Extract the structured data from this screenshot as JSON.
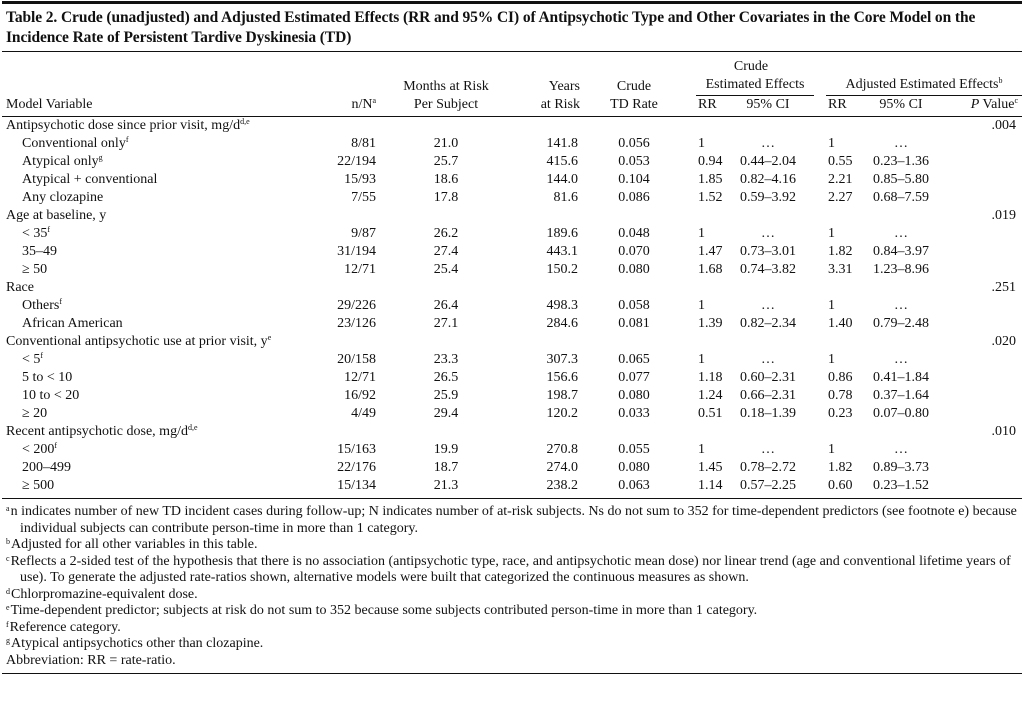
{
  "title": "Table 2. Crude (unadjusted) and Adjusted Estimated Effects (RR and 95% CI) of Antipsychotic Type and Other Covariates in the Core Model on the Incidence Rate of Persistent Tardive Dyskinesia (TD)",
  "header": {
    "model_variable": "Model Variable",
    "nN": "n/N",
    "nN_sup": "a",
    "months_1": "Months at Risk",
    "months_2": "Per Subject",
    "years_1": "Years",
    "years_2": "at Risk",
    "rate_1": "Crude",
    "rate_2": "TD Rate",
    "crude_1": "Crude",
    "crude_2": "Estimated Effects",
    "adjusted": "Adjusted Estimated Effects",
    "adjusted_sup": "b",
    "rr": "RR",
    "ci": "95% CI",
    "p_italic": "P",
    "p_rest": " Value",
    "p_sup": "c"
  },
  "groups": [
    {
      "label": "Antipsychotic dose since prior visit, mg/d",
      "sup": "d,e",
      "p": ".004",
      "rows": [
        {
          "label": "Conventional only",
          "sup": "f",
          "nN": "8/81",
          "months": "21.0",
          "years": "141.8",
          "rate": "0.056",
          "crr": "1",
          "cci": "…",
          "arr": "1",
          "aci": "…"
        },
        {
          "label": "Atypical only",
          "sup": "g",
          "nN": "22/194",
          "months": "25.7",
          "years": "415.6",
          "rate": "0.053",
          "crr": "0.94",
          "cci": "0.44–2.04",
          "arr": "0.55",
          "aci": "0.23–1.36"
        },
        {
          "label": "Atypical + conventional",
          "sup": "",
          "nN": "15/93",
          "months": "18.6",
          "years": "144.0",
          "rate": "0.104",
          "crr": "1.85",
          "cci": "0.82–4.16",
          "arr": "2.21",
          "aci": "0.85–5.80"
        },
        {
          "label": "Any clozapine",
          "sup": "",
          "nN": "7/55",
          "months": "17.8",
          "years": "81.6",
          "rate": "0.086",
          "crr": "1.52",
          "cci": "0.59–3.92",
          "arr": "2.27",
          "aci": "0.68–7.59"
        }
      ]
    },
    {
      "label": "Age at baseline, y",
      "sup": "",
      "p": ".019",
      "rows": [
        {
          "label": "< 35",
          "sup": "f",
          "nN": "9/87",
          "months": "26.2",
          "years": "189.6",
          "rate": "0.048",
          "crr": "1",
          "cci": "…",
          "arr": "1",
          "aci": "…"
        },
        {
          "label": "35–49",
          "sup": "",
          "nN": "31/194",
          "months": "27.4",
          "years": "443.1",
          "rate": "0.070",
          "crr": "1.47",
          "cci": "0.73–3.01",
          "arr": "1.82",
          "aci": "0.84–3.97"
        },
        {
          "label": "≥ 50",
          "sup": "",
          "nN": "12/71",
          "months": "25.4",
          "years": "150.2",
          "rate": "0.080",
          "crr": "1.68",
          "cci": "0.74–3.82",
          "arr": "3.31",
          "aci": "1.23–8.96"
        }
      ]
    },
    {
      "label": "Race",
      "sup": "",
      "p": ".251",
      "rows": [
        {
          "label": "Others",
          "sup": "f",
          "nN": "29/226",
          "months": "26.4",
          "years": "498.3",
          "rate": "0.058",
          "crr": "1",
          "cci": "…",
          "arr": "1",
          "aci": "…"
        },
        {
          "label": "African American",
          "sup": "",
          "nN": "23/126",
          "months": "27.1",
          "years": "284.6",
          "rate": "0.081",
          "crr": "1.39",
          "cci": "0.82–2.34",
          "arr": "1.40",
          "aci": "0.79–2.48"
        }
      ]
    },
    {
      "label": "Conventional antipsychotic use at prior visit, y",
      "sup": "e",
      "p": ".020",
      "rows": [
        {
          "label": "< 5",
          "sup": "f",
          "nN": "20/158",
          "months": "23.3",
          "years": "307.3",
          "rate": "0.065",
          "crr": "1",
          "cci": "…",
          "arr": "1",
          "aci": "…"
        },
        {
          "label": "5 to < 10",
          "sup": "",
          "nN": "12/71",
          "months": "26.5",
          "years": "156.6",
          "rate": "0.077",
          "crr": "1.18",
          "cci": "0.60–2.31",
          "arr": "0.86",
          "aci": "0.41–1.84"
        },
        {
          "label": "10 to < 20",
          "sup": "",
          "nN": "16/92",
          "months": "25.9",
          "years": "198.7",
          "rate": "0.080",
          "crr": "1.24",
          "cci": "0.66–2.31",
          "arr": "0.78",
          "aci": "0.37–1.64"
        },
        {
          "label": "≥ 20",
          "sup": "",
          "nN": "4/49",
          "months": "29.4",
          "years": "120.2",
          "rate": "0.033",
          "crr": "0.51",
          "cci": "0.18–1.39",
          "arr": "0.23",
          "aci": "0.07–0.80"
        }
      ]
    },
    {
      "label": "Recent antipsychotic dose, mg/d",
      "sup": "d,e",
      "p": ".010",
      "rows": [
        {
          "label": "< 200",
          "sup": "f",
          "nN": "15/163",
          "months": "19.9",
          "years": "270.8",
          "rate": "0.055",
          "crr": "1",
          "cci": "…",
          "arr": "1",
          "aci": "…"
        },
        {
          "label": "200–499",
          "sup": "",
          "nN": "22/176",
          "months": "18.7",
          "years": "274.0",
          "rate": "0.080",
          "crr": "1.45",
          "cci": "0.78–2.72",
          "arr": "1.82",
          "aci": "0.89–3.73"
        },
        {
          "label": "≥ 500",
          "sup": "",
          "nN": "15/134",
          "months": "21.3",
          "years": "238.2",
          "rate": "0.063",
          "crr": "1.14",
          "cci": "0.57–2.25",
          "arr": "0.60",
          "aci": "0.23–1.52"
        }
      ]
    }
  ],
  "footnotes": [
    {
      "mark": "a",
      "text": "n indicates number of new TD incident cases during follow-up; N indicates number of at-risk subjects. Ns do not sum to 352 for time-dependent predictors (see footnote e) because individual subjects can contribute person-time in more than 1 category."
    },
    {
      "mark": "b",
      "text": "Adjusted for all other variables in this table."
    },
    {
      "mark": "c",
      "text": "Reflects a 2-sided test of the hypothesis that there is no association (antipsychotic type, race, and antipsychotic mean dose) nor linear trend (age and conventional lifetime years of use). To generate the adjusted rate-ratios shown, alternative models were built that categorized the continuous measures as shown."
    },
    {
      "mark": "d",
      "text": "Chlorpromazine-equivalent dose."
    },
    {
      "mark": "e",
      "text": "Time-dependent predictor; subjects at risk do not sum to 352 because some subjects contributed person-time in more than 1 category."
    },
    {
      "mark": "f",
      "text": "Reference category."
    },
    {
      "mark": "g",
      "text": "Atypical antipsychotics other than clozapine."
    }
  ],
  "abbreviation": "Abbreviation: RR = rate-ratio."
}
